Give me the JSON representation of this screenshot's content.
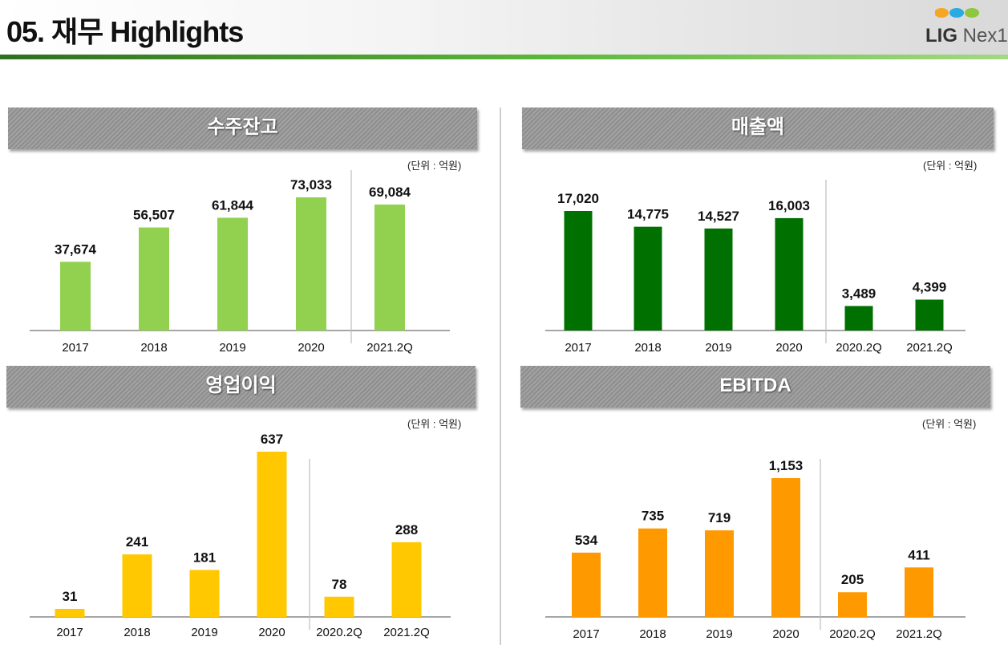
{
  "page": {
    "title": "05. 재무 Highlights",
    "logo": {
      "brand": "LIG",
      "suffix": "Nex1",
      "dot_colors": [
        "#f5a623",
        "#29abe2",
        "#8dc63f"
      ]
    }
  },
  "unit_label": "(단위 : 억원)",
  "colors": {
    "header_line": "#4caf2e",
    "panel_header": "#999999"
  },
  "chart_data": [
    {
      "type": "bar",
      "title": "수주잔고",
      "categories": [
        "2017",
        "2018",
        "2019",
        "2020",
        "2021.2Q"
      ],
      "values": [
        37674,
        56507,
        61844,
        73033,
        69084
      ],
      "labels": [
        "37,674",
        "56,507",
        "61,844",
        "73,033",
        "69,084"
      ],
      "color": "#92d050",
      "divider_after_index": 3,
      "ylim": [
        0,
        80000
      ]
    },
    {
      "type": "bar",
      "title": "매출액",
      "categories": [
        "2017",
        "2018",
        "2019",
        "2020",
        "2020.2Q",
        "2021.2Q"
      ],
      "values": [
        17020,
        14775,
        14527,
        16003,
        3489,
        4399
      ],
      "labels": [
        "17,020",
        "14,775",
        "14,527",
        "16,003",
        "3,489",
        "4,399"
      ],
      "color": "#007000",
      "divider_after_index": 3,
      "ylim": [
        0,
        20000
      ]
    },
    {
      "type": "bar",
      "title": "영업이익",
      "categories": [
        "2017",
        "2018",
        "2019",
        "2020",
        "2020.2Q",
        "2021.2Q"
      ],
      "values": [
        31,
        241,
        181,
        637,
        78,
        288
      ],
      "labels": [
        "31",
        "241",
        "181",
        "637",
        "78",
        "288"
      ],
      "color": "#ffc800",
      "divider_after_index": 3,
      "ylim": [
        0,
        700
      ]
    },
    {
      "type": "bar",
      "title": "EBITDA",
      "categories": [
        "2017",
        "2018",
        "2019",
        "2020",
        "2020.2Q",
        "2021.2Q"
      ],
      "values": [
        534,
        735,
        719,
        1153,
        205,
        411
      ],
      "labels": [
        "534",
        "735",
        "719",
        "1,153",
        "205",
        "411"
      ],
      "color": "#ff9900",
      "divider_after_index": 3,
      "ylim": [
        0,
        1400
      ]
    }
  ]
}
